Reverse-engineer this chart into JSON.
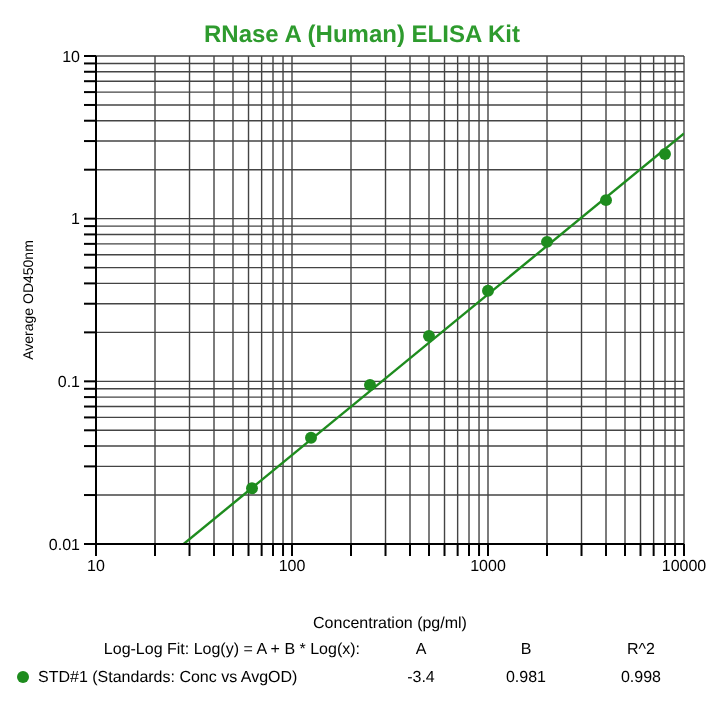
{
  "chart_data": {
    "type": "scatter",
    "title": "RNase A (Human) ELISA Kit",
    "xlabel": "Concentration (pg/ml)",
    "ylabel": "Average OD450nm",
    "log": "xy",
    "grid": true,
    "legend": "bottom",
    "marker": "circle",
    "xlim": [
      10,
      10000
    ],
    "ylim": [
      0.01,
      10
    ],
    "xticks": [
      10,
      {
        "value": 20,
        "label": null
      },
      {
        "value": 30,
        "label": null
      },
      {
        "value": 40,
        "label": null
      },
      {
        "value": 50,
        "label": null
      },
      {
        "value": 60,
        "label": null
      },
      {
        "value": 70,
        "label": null
      },
      {
        "value": 80,
        "label": null
      },
      {
        "value": 90,
        "label": null
      },
      100,
      {
        "value": 200,
        "label": null
      },
      {
        "value": 300,
        "label": null
      },
      {
        "value": 400,
        "label": null
      },
      {
        "value": 500,
        "label": null
      },
      {
        "value": 600,
        "label": null
      },
      {
        "value": 700,
        "label": null
      },
      {
        "value": 800,
        "label": null
      },
      {
        "value": 900,
        "label": null
      },
      1000,
      {
        "value": 2000,
        "label": null
      },
      {
        "value": 3000,
        "label": null
      },
      {
        "value": 4000,
        "label": null
      },
      {
        "value": 5000,
        "label": null
      },
      {
        "value": 6000,
        "label": null
      },
      {
        "value": 7000,
        "label": null
      },
      {
        "value": 8000,
        "label": null
      },
      {
        "value": 9000,
        "label": null
      },
      10000
    ],
    "yticks": [
      0.01,
      {
        "value": 0.02,
        "label": null
      },
      {
        "value": 0.03,
        "label": null
      },
      {
        "value": 0.04,
        "label": null
      },
      {
        "value": 0.05,
        "label": null
      },
      {
        "value": 0.06,
        "label": null
      },
      {
        "value": 0.07,
        "label": null
      },
      {
        "value": 0.08,
        "label": null
      },
      {
        "value": 0.09,
        "label": null
      },
      0.1,
      {
        "value": 0.2,
        "label": null
      },
      {
        "value": 0.3,
        "label": null
      },
      {
        "value": 0.4,
        "label": null
      },
      {
        "value": 0.5,
        "label": null
      },
      {
        "value": 0.6,
        "label": null
      },
      {
        "value": 0.7,
        "label": null
      },
      {
        "value": 0.8,
        "label": null
      },
      {
        "value": 0.9,
        "label": null
      },
      1,
      {
        "value": 2,
        "label": null
      },
      {
        "value": 3,
        "label": null
      },
      {
        "value": 4,
        "label": null
      },
      {
        "value": 5,
        "label": null
      },
      {
        "value": 6,
        "label": null
      },
      {
        "value": 7,
        "label": null
      },
      {
        "value": 8,
        "label": null
      },
      {
        "value": 9,
        "label": null
      },
      10
    ],
    "series": [
      {
        "name": "STD#1 (Standards: Conc vs AvgOD)",
        "color": "#1e8c1e",
        "x": [
          62.5,
          125,
          250,
          500,
          1000,
          2000,
          4000,
          8000
        ],
        "values": [
          0.022,
          0.045,
          0.095,
          0.19,
          0.36,
          0.72,
          1.3,
          2.5
        ]
      },
      {
        "type": "line",
        "marker": "none",
        "color": "#1e8c1e",
        "x": [
          28,
          10000
        ],
        "values": [
          0.01,
          3.34
        ]
      }
    ],
    "annotations": [
      "Log-Log Fit: Log(y) = A + B * Log(x):",
      "A",
      "B",
      "R^2",
      "-3.4",
      "0.981",
      "0.998"
    ]
  }
}
